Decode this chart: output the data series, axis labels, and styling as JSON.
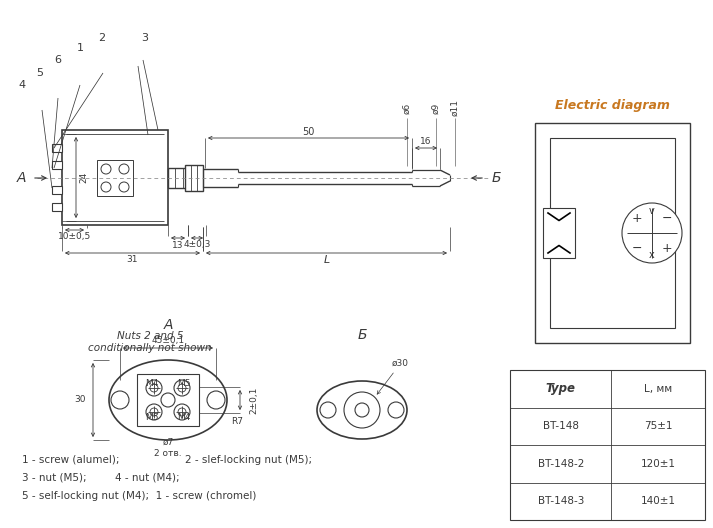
{
  "bg_color": "#ffffff",
  "lc": "#3a3a3a",
  "title": "Electric diagram",
  "title_color": "#c87820",
  "table_types": [
    "Type",
    "BT-148",
    "BT-148-2",
    "BT-148-3"
  ],
  "table_L": [
    "L, мм",
    "75±1",
    "120±1",
    "140±1"
  ],
  "note_text": "Nuts 2 and 5\nconditionally not shown"
}
